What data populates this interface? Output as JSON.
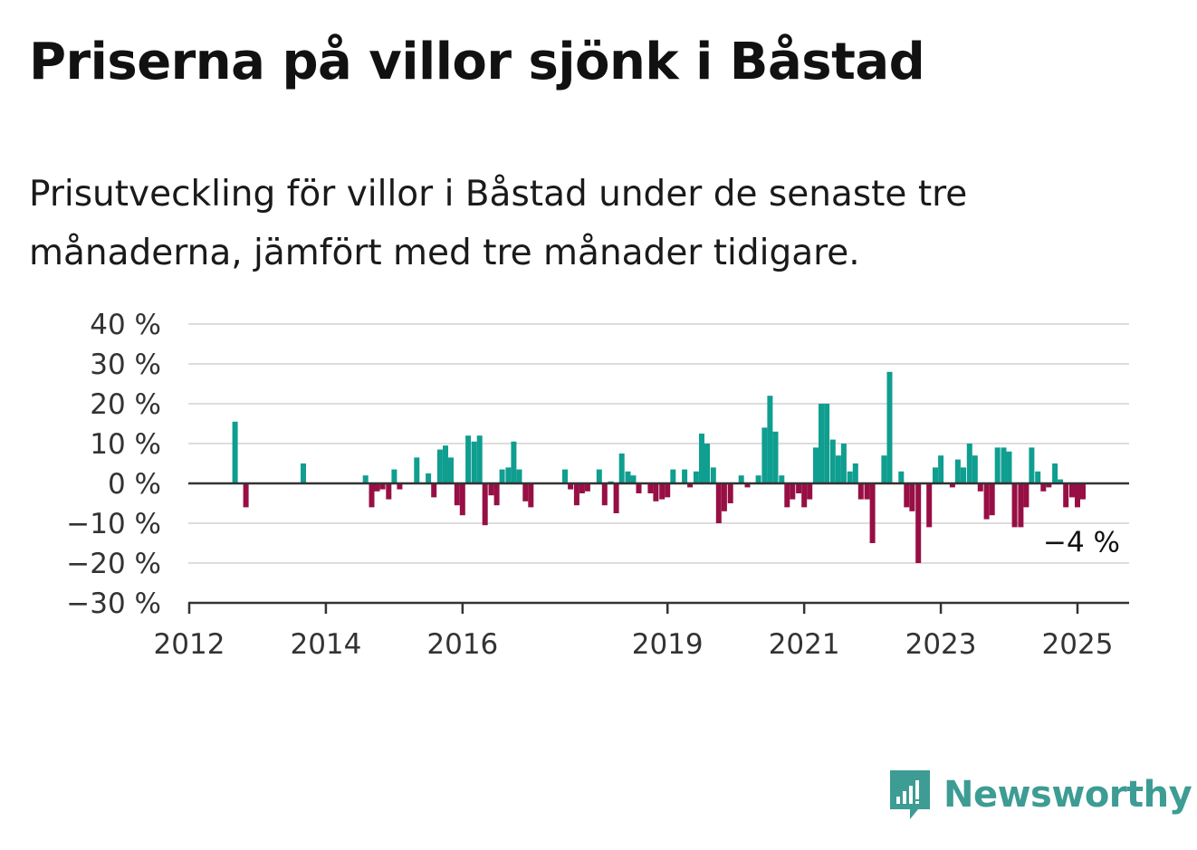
{
  "title": "Priserna på villor sjönk i Båstad",
  "subtitle": "Prisutveckling för villor i Båstad under de senaste tre månaderna, jämfört med tre månader tidigare.",
  "brand": {
    "name": "Newsworthy",
    "icon": "newsworthy-logo-icon",
    "color": "#3d9c93"
  },
  "colors": {
    "positive": "#0f9e90",
    "negative": "#970f44",
    "grid": "#dddddd",
    "axis": "#333333"
  },
  "chart_data": {
    "type": "bar",
    "title": "Priserna på villor sjönk i Båstad",
    "subtitle": "Prisutveckling för villor i Båstad under de senaste tre månaderna, jämfört med tre månader tidigare.",
    "xlabel": "",
    "ylabel": "",
    "ylim": [
      -30,
      40
    ],
    "xlim": [
      2012.0,
      2025.75
    ],
    "grid": true,
    "y_ticks": [
      {
        "value": 40,
        "label": "40 %"
      },
      {
        "value": 30,
        "label": "30 %"
      },
      {
        "value": 20,
        "label": "20 %"
      },
      {
        "value": 10,
        "label": "10 %"
      },
      {
        "value": 0,
        "label": "0 %"
      },
      {
        "value": -10,
        "label": "−10 %"
      },
      {
        "value": -20,
        "label": "−20 %"
      },
      {
        "value": -30,
        "label": "−30 %"
      }
    ],
    "x_ticks": [
      {
        "value": 2012,
        "label": "2012"
      },
      {
        "value": 2014,
        "label": "2014"
      },
      {
        "value": 2016,
        "label": "2016"
      },
      {
        "value": 2019,
        "label": "2019"
      },
      {
        "value": 2021,
        "label": "2021"
      },
      {
        "value": 2023,
        "label": "2023"
      },
      {
        "value": 2025,
        "label": "2025"
      }
    ],
    "annotation": {
      "label": "−4 %",
      "value": -4
    },
    "series": [
      {
        "name": "",
        "points": [
          {
            "x": 2012.67,
            "y": 15.5
          },
          {
            "x": 2012.83,
            "y": -6
          },
          {
            "x": 2013.67,
            "y": 5
          },
          {
            "x": 2014.58,
            "y": 2
          },
          {
            "x": 2014.67,
            "y": -6
          },
          {
            "x": 2014.75,
            "y": -2
          },
          {
            "x": 2014.83,
            "y": -1.5
          },
          {
            "x": 2014.92,
            "y": -4
          },
          {
            "x": 2015.0,
            "y": 3.5
          },
          {
            "x": 2015.08,
            "y": -1.5
          },
          {
            "x": 2015.33,
            "y": 6.5
          },
          {
            "x": 2015.5,
            "y": 2.5
          },
          {
            "x": 2015.58,
            "y": -3.5
          },
          {
            "x": 2015.67,
            "y": 8.5
          },
          {
            "x": 2015.75,
            "y": 9.5
          },
          {
            "x": 2015.83,
            "y": 6.5
          },
          {
            "x": 2015.92,
            "y": -5.5
          },
          {
            "x": 2016.0,
            "y": -8
          },
          {
            "x": 2016.0833,
            "y": 12
          },
          {
            "x": 2016.17,
            "y": 10.5
          },
          {
            "x": 2016.25,
            "y": 12
          },
          {
            "x": 2016.33,
            "y": -10.5
          },
          {
            "x": 2016.42,
            "y": -3
          },
          {
            "x": 2016.5,
            "y": -5.5
          },
          {
            "x": 2016.58,
            "y": 3.5
          },
          {
            "x": 2016.67,
            "y": 4
          },
          {
            "x": 2016.75,
            "y": 10.5
          },
          {
            "x": 2016.83,
            "y": 3.5
          },
          {
            "x": 2016.92,
            "y": -4.5
          },
          {
            "x": 2017.0,
            "y": -6
          },
          {
            "x": 2017.5,
            "y": 3.5
          },
          {
            "x": 2017.58,
            "y": -1.5
          },
          {
            "x": 2017.67,
            "y": -5.5
          },
          {
            "x": 2017.75,
            "y": -2.5
          },
          {
            "x": 2017.83,
            "y": -2
          },
          {
            "x": 2018.0,
            "y": 3.5
          },
          {
            "x": 2018.08,
            "y": -5.5
          },
          {
            "x": 2018.17,
            "y": 0.5
          },
          {
            "x": 2018.25,
            "y": -7.5
          },
          {
            "x": 2018.33,
            "y": 7.5
          },
          {
            "x": 2018.42,
            "y": 3
          },
          {
            "x": 2018.5,
            "y": 2
          },
          {
            "x": 2018.58,
            "y": -2.5
          },
          {
            "x": 2018.75,
            "y": -2.5
          },
          {
            "x": 2018.83,
            "y": -4.5
          },
          {
            "x": 2018.92,
            "y": -4
          },
          {
            "x": 2019.0,
            "y": -3.5
          },
          {
            "x": 2019.08,
            "y": 3.5
          },
          {
            "x": 2019.25,
            "y": 3.5
          },
          {
            "x": 2019.33,
            "y": -1
          },
          {
            "x": 2019.42,
            "y": 3
          },
          {
            "x": 2019.5,
            "y": 12.5
          },
          {
            "x": 2019.58,
            "y": 10
          },
          {
            "x": 2019.67,
            "y": 4
          },
          {
            "x": 2019.75,
            "y": -10
          },
          {
            "x": 2019.83,
            "y": -7
          },
          {
            "x": 2019.92,
            "y": -5
          },
          {
            "x": 2020.08,
            "y": 2
          },
          {
            "x": 2020.17,
            "y": -1
          },
          {
            "x": 2020.33,
            "y": 2
          },
          {
            "x": 2020.42,
            "y": 14
          },
          {
            "x": 2020.5,
            "y": 22
          },
          {
            "x": 2020.58,
            "y": 13
          },
          {
            "x": 2020.67,
            "y": 2
          },
          {
            "x": 2020.75,
            "y": -6
          },
          {
            "x": 2020.83,
            "y": -4
          },
          {
            "x": 2020.92,
            "y": -2.5
          },
          {
            "x": 2021.0,
            "y": -6
          },
          {
            "x": 2021.08,
            "y": -4
          },
          {
            "x": 2021.17,
            "y": 9
          },
          {
            "x": 2021.25,
            "y": 20
          },
          {
            "x": 2021.33,
            "y": 20
          },
          {
            "x": 2021.42,
            "y": 11
          },
          {
            "x": 2021.5,
            "y": 7
          },
          {
            "x": 2021.58,
            "y": 10
          },
          {
            "x": 2021.67,
            "y": 3
          },
          {
            "x": 2021.75,
            "y": 5
          },
          {
            "x": 2021.83,
            "y": -4
          },
          {
            "x": 2021.92,
            "y": -4
          },
          {
            "x": 2022.0,
            "y": -15
          },
          {
            "x": 2022.17,
            "y": 7
          },
          {
            "x": 2022.25,
            "y": 28
          },
          {
            "x": 2022.42,
            "y": 3
          },
          {
            "x": 2022.5,
            "y": -6
          },
          {
            "x": 2022.58,
            "y": -7
          },
          {
            "x": 2022.67,
            "y": -20
          },
          {
            "x": 2022.83,
            "y": -11
          },
          {
            "x": 2022.92,
            "y": 4
          },
          {
            "x": 2023.0,
            "y": 7
          },
          {
            "x": 2023.17,
            "y": -1
          },
          {
            "x": 2023.25,
            "y": 6
          },
          {
            "x": 2023.33,
            "y": 4
          },
          {
            "x": 2023.42,
            "y": 10
          },
          {
            "x": 2023.5,
            "y": 7
          },
          {
            "x": 2023.58,
            "y": -2
          },
          {
            "x": 2023.67,
            "y": -9
          },
          {
            "x": 2023.75,
            "y": -8
          },
          {
            "x": 2023.83,
            "y": 9
          },
          {
            "x": 2023.92,
            "y": 9
          },
          {
            "x": 2024.0,
            "y": 8
          },
          {
            "x": 2024.08,
            "y": -11
          },
          {
            "x": 2024.17,
            "y": -11
          },
          {
            "x": 2024.25,
            "y": -6
          },
          {
            "x": 2024.33,
            "y": 9
          },
          {
            "x": 2024.42,
            "y": 3
          },
          {
            "x": 2024.5,
            "y": -2
          },
          {
            "x": 2024.58,
            "y": -1
          },
          {
            "x": 2024.67,
            "y": 5
          },
          {
            "x": 2024.75,
            "y": 1
          },
          {
            "x": 2024.83,
            "y": -6
          },
          {
            "x": 2024.92,
            "y": -3.5
          },
          {
            "x": 2025.0,
            "y": -6
          },
          {
            "x": 2025.08,
            "y": -4
          }
        ]
      }
    ]
  }
}
